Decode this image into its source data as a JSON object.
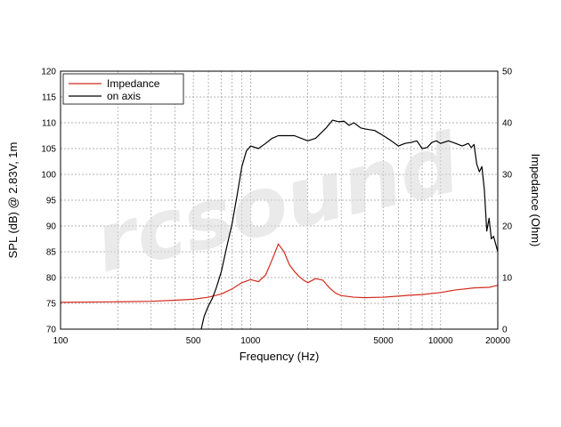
{
  "chart_data": {
    "type": "line",
    "xlabel": "Frequency (Hz)",
    "ylabel": "SPL (dB) @ 2.83V, 1m",
    "y2label": "Impedance (Ohm)",
    "xscale": "log",
    "xlim": [
      100,
      20000
    ],
    "ylim": [
      70,
      120
    ],
    "y2lim": [
      0,
      50
    ],
    "grid": true,
    "legend": "top-left",
    "x_ticks": [
      100,
      500,
      1000,
      5000,
      10000,
      20000
    ],
    "x_tick_labels": [
      "100",
      "500",
      "1000",
      "5000",
      "10000",
      "20000"
    ],
    "y_ticks": [
      70,
      75,
      80,
      85,
      90,
      95,
      100,
      105,
      110,
      115,
      120
    ],
    "y2_ticks": [
      0,
      10,
      20,
      30,
      40,
      50
    ],
    "watermark": "rcsound",
    "series": [
      {
        "name": "Impedance",
        "axis": "right",
        "color": "#d42a1e",
        "x": [
          100,
          200,
          300,
          400,
          500,
          600,
          700,
          800,
          900,
          1000,
          1100,
          1200,
          1300,
          1400,
          1500,
          1600,
          1700,
          1800,
          1900,
          2000,
          2200,
          2400,
          2600,
          2800,
          3000,
          3500,
          4000,
          5000,
          6000,
          7000,
          8000,
          10000,
          12000,
          15000,
          18000,
          20000
        ],
        "y": [
          5.2,
          5.3,
          5.4,
          5.6,
          5.8,
          6.2,
          6.8,
          7.8,
          9.0,
          9.6,
          9.2,
          10.5,
          13.5,
          16.5,
          15.0,
          12.5,
          11.2,
          10.2,
          9.5,
          9.0,
          9.8,
          9.5,
          8.0,
          7.0,
          6.5,
          6.2,
          6.1,
          6.2,
          6.4,
          6.6,
          6.7,
          7.1,
          7.6,
          8.0,
          8.1,
          8.5
        ]
      },
      {
        "name": "on axis",
        "axis": "left",
        "color": "#000000",
        "x": [
          550,
          570,
          600,
          630,
          660,
          700,
          750,
          800,
          850,
          900,
          950,
          1000,
          1100,
          1200,
          1300,
          1400,
          1500,
          1700,
          2000,
          2200,
          2500,
          2700,
          2900,
          3100,
          3300,
          3500,
          3800,
          4000,
          4500,
          5000,
          5500,
          6000,
          6500,
          7000,
          7500,
          8000,
          8500,
          9000,
          9500,
          10000,
          11000,
          12000,
          13000,
          14000,
          14500,
          15000,
          15500,
          16000,
          16500,
          17000,
          17500,
          18000,
          18500,
          19000,
          19500,
          20000
        ],
        "y": [
          70.0,
          72.5,
          74.5,
          76.0,
          78.0,
          81.0,
          86.0,
          90.5,
          96.0,
          101.5,
          104.5,
          105.5,
          105.0,
          106.0,
          107.0,
          107.5,
          107.5,
          107.5,
          106.5,
          107.0,
          109.0,
          110.5,
          110.2,
          110.3,
          109.5,
          110.0,
          109.0,
          108.8,
          108.5,
          107.5,
          106.5,
          105.5,
          106.0,
          106.2,
          106.5,
          105.0,
          105.2,
          106.2,
          106.5,
          106.0,
          106.5,
          106.0,
          105.5,
          106.0,
          105.2,
          105.8,
          102.0,
          100.5,
          101.5,
          97.0,
          89.0,
          91.5,
          87.5,
          88.0,
          86.5,
          85.0
        ]
      }
    ]
  }
}
